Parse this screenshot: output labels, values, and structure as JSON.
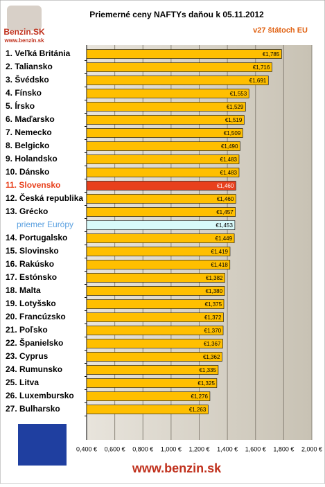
{
  "chart_data": {
    "type": "hbar",
    "title": "Priemerné ceny NAFTYs daňou k 05.11.2012",
    "subtitle": "v27 štátoch EU",
    "logo": "Benzin.SK",
    "logo_url": "www.benzin.sk",
    "footer": "www.benzin.sk",
    "categories": [
      "1. Veľká Británia",
      "2. Taliansko",
      "3. Švédsko",
      "4. Fínsko",
      "5. Írsko",
      "6. Maďarsko",
      "7. Nemecko",
      "8. Belgicko",
      "9. Holandsko",
      "10. Dánsko",
      "11. Slovensko",
      "12. Česká republika",
      "13. Grécko",
      "priemer Európy",
      "14. Portugalsko",
      "15. Slovinsko",
      "16. Rakúsko",
      "17. Estónsko",
      "18. Malta",
      "19. Lotyšsko",
      "20. Francúzsko",
      "21. Poľsko",
      "22. Španielsko",
      "23. Cyprus",
      "24. Rumunsko",
      "25. Litva",
      "26. Luxembursko",
      "27. Bulharsko"
    ],
    "values": [
      1.785,
      1.716,
      1.691,
      1.553,
      1.529,
      1.519,
      1.509,
      1.49,
      1.483,
      1.483,
      1.46,
      1.46,
      1.457,
      1.453,
      1.449,
      1.419,
      1.418,
      1.382,
      1.38,
      1.375,
      1.372,
      1.37,
      1.367,
      1.362,
      1.335,
      1.325,
      1.276,
      1.263
    ],
    "value_labels": [
      "€1,785",
      "€1,716",
      "€1,691",
      "€1,553",
      "€1,529",
      "€1,519",
      "€1,509",
      "€1,490",
      "€1,483",
      "€1,483",
      "€1,460",
      "€1,460",
      "€1,457",
      "€1,453",
      "€1,449",
      "€1,419",
      "€1,418",
      "€1,382",
      "€1,380",
      "€1,375",
      "€1,372",
      "€1,370",
      "€1,367",
      "€1,362",
      "€1,335",
      "€1,325",
      "€1,276",
      "€1,263"
    ],
    "color": "#ffbf00",
    "highlights": {
      "10": "#e8401c",
      "13": "#d8fafa"
    },
    "label_highlights": {
      "10": "#e8401c",
      "13": "#5aa0e0"
    },
    "xlim": [
      0.4,
      2.0
    ],
    "xticks": [
      {
        "value": 0.4,
        "label": "0,400 €"
      },
      {
        "value": 0.6,
        "label": "0,600 €"
      },
      {
        "value": 0.8,
        "label": "0,800 €"
      },
      {
        "value": 1.0,
        "label": "1,000 €"
      },
      {
        "value": 1.2,
        "label": "1,200 €"
      },
      {
        "value": 1.4,
        "label": "1,400 €"
      },
      {
        "value": 1.6,
        "label": "1,600 €"
      },
      {
        "value": 1.8,
        "label": "1,800 €"
      },
      {
        "value": 2.0,
        "label": "2,000 €"
      }
    ],
    "grid": true
  }
}
